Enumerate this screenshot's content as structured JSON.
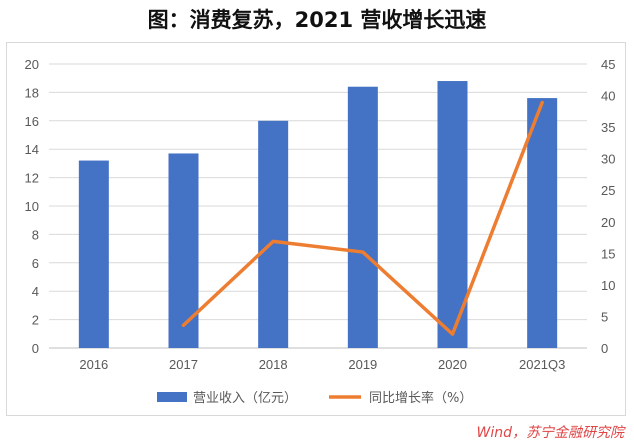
{
  "title": "图：消费复苏，2021 营收增长迅速",
  "source": "Wind，苏宁金融研究院",
  "colors": {
    "bar": "#4472c4",
    "line": "#ed7d31",
    "grid": "#d9d9d9",
    "axis_text": "#595959"
  },
  "chart_data": {
    "type": "bar",
    "categories": [
      "2016",
      "2017",
      "2018",
      "2019",
      "2020",
      "2021Q3"
    ],
    "series": [
      {
        "name": "营业收入（亿元）",
        "type": "bar",
        "axis": "left",
        "values": [
          13.2,
          13.7,
          16.0,
          18.4,
          18.8,
          17.6
        ]
      },
      {
        "name": "同比增长率（%）",
        "type": "line",
        "axis": "right",
        "values": [
          null,
          3.6,
          16.9,
          15.2,
          2.2,
          38.9
        ]
      }
    ],
    "y_left": {
      "ylim": [
        0,
        20
      ],
      "ticks": [
        "0",
        "2",
        "4",
        "6",
        "8",
        "10",
        "12",
        "14",
        "16",
        "18",
        "20"
      ]
    },
    "y_right": {
      "ylim": [
        0,
        45
      ],
      "ticks": [
        "0",
        "5",
        "10",
        "15",
        "20",
        "25",
        "30",
        "35",
        "40",
        "45"
      ]
    },
    "grid": true,
    "legend": "bottom"
  }
}
